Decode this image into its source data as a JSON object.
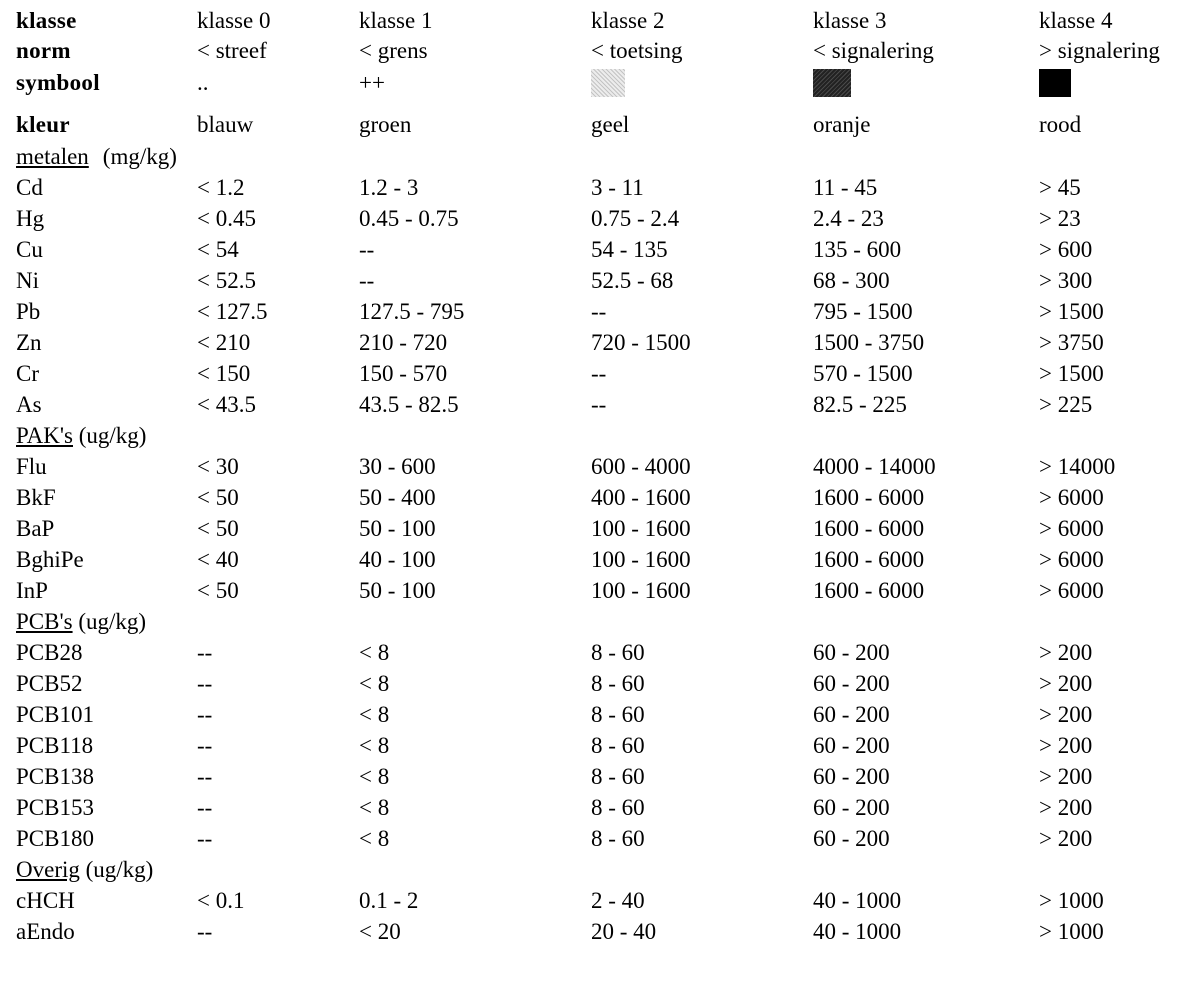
{
  "header": {
    "klasse": [
      "klasse",
      "klasse 0",
      "klasse 1",
      "klasse 2",
      "klasse 3",
      "klasse 4"
    ],
    "norm": [
      "norm",
      "< streef",
      "< grens",
      "< toetsing",
      "< signalering",
      "> signalering"
    ],
    "symbool": {
      "label": "symbool",
      "klasse0": "..",
      "klasse1": "++",
      "klasse2_swatch": "light-gray-dotted-pattern",
      "klasse3_swatch": "dark-gray-dotted-pattern",
      "klasse4_swatch": "solid-black"
    },
    "kleur": [
      "kleur",
      "blauw",
      "groen",
      "geel",
      "oranje",
      "rood"
    ]
  },
  "sections": [
    {
      "name": "metalen",
      "unit": "(mg/kg)",
      "rows": [
        [
          "Cd",
          "< 1.2",
          "1.2 - 3",
          "3 - 11",
          "11 - 45",
          "> 45"
        ],
        [
          "Hg",
          "< 0.45",
          "0.45 - 0.75",
          "0.75 - 2.4",
          "2.4 - 23",
          "> 23"
        ],
        [
          "Cu",
          "< 54",
          "--",
          "54 - 135",
          "135 - 600",
          "> 600"
        ],
        [
          "Ni",
          "< 52.5",
          "--",
          "52.5 - 68",
          "68 - 300",
          "> 300"
        ],
        [
          "Pb",
          "< 127.5",
          "127.5 - 795",
          "--",
          "795 - 1500",
          "> 1500"
        ],
        [
          "Zn",
          "< 210",
          "210 - 720",
          "720 - 1500",
          "1500 - 3750",
          "> 3750"
        ],
        [
          "Cr",
          "< 150",
          "150 - 570",
          "--",
          "570 - 1500",
          "> 1500"
        ],
        [
          "As",
          "< 43.5",
          "43.5 - 82.5",
          "--",
          "82.5 - 225",
          "> 225"
        ]
      ]
    },
    {
      "name": "PAK's",
      "unit": "(ug/kg)",
      "rows": [
        [
          "Flu",
          "< 30",
          "30 - 600",
          "600 - 4000",
          "4000 - 14000",
          "> 14000"
        ],
        [
          "BkF",
          "< 50",
          "50 - 400",
          "400 - 1600",
          "1600 - 6000",
          "> 6000"
        ],
        [
          "BaP",
          "< 50",
          "50 - 100",
          "100 - 1600",
          "1600 - 6000",
          "> 6000"
        ],
        [
          "BghiPe",
          "< 40",
          "40 - 100",
          "100 - 1600",
          "1600 - 6000",
          "> 6000"
        ],
        [
          "InP",
          "< 50",
          "50 - 100",
          "100 - 1600",
          "1600 - 6000",
          "> 6000"
        ]
      ]
    },
    {
      "name": "PCB's",
      "unit": "(ug/kg)",
      "rows": [
        [
          "PCB28",
          "--",
          "< 8",
          "8 - 60",
          "60 - 200",
          "> 200"
        ],
        [
          "PCB52",
          "--",
          "< 8",
          "8 - 60",
          "60 - 200",
          "> 200"
        ],
        [
          "PCB101",
          "--",
          "< 8",
          "8 - 60",
          "60 - 200",
          "> 200"
        ],
        [
          "PCB118",
          "--",
          "< 8",
          "8 - 60",
          "60 - 200",
          "> 200"
        ],
        [
          "PCB138",
          "--",
          "< 8",
          "8 - 60",
          "60 - 200",
          "> 200"
        ],
        [
          "PCB153",
          "--",
          "< 8",
          "8 - 60",
          "60 - 200",
          "> 200"
        ],
        [
          "PCB180",
          "--",
          "< 8",
          "8 - 60",
          "60 - 200",
          "> 200"
        ]
      ]
    },
    {
      "name": "Overig",
      "unit": "(ug/kg)",
      "rows": [
        [
          "cHCH",
          "< 0.1",
          "0.1 - 2",
          "2 - 40",
          "40 - 1000",
          "> 1000"
        ],
        [
          "aEndo",
          "--",
          "< 20",
          "20 - 40",
          "40 - 1000",
          "> 1000"
        ]
      ]
    }
  ]
}
